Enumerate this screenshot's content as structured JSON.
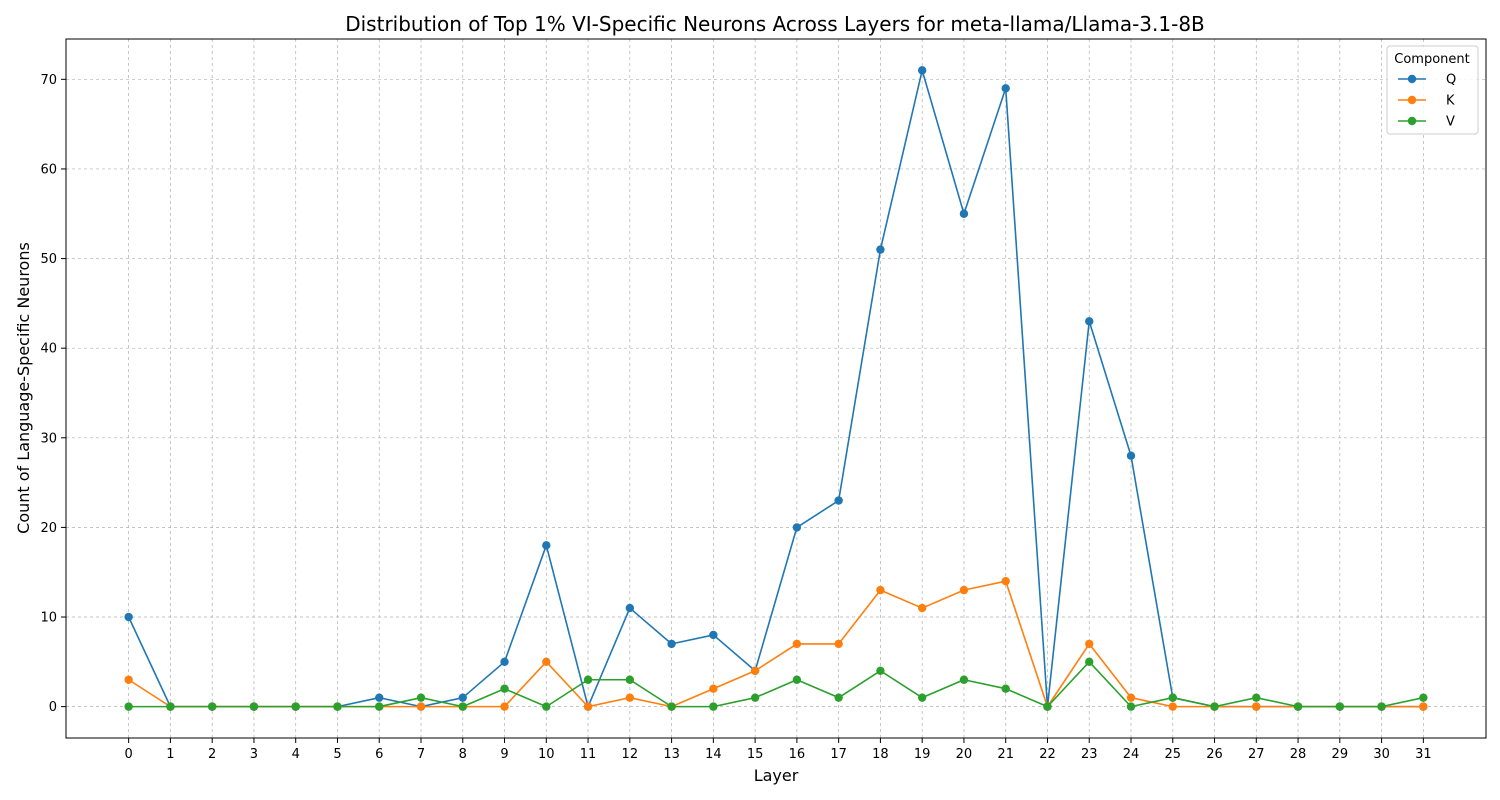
{
  "chart_data": {
    "type": "line",
    "title": "Distribution of Top 1% VI-Specific Neurons Across Layers for meta-llama/Llama-3.1-8B",
    "xlabel": "Layer",
    "ylabel": "Count of Language-Specific Neurons",
    "x": [
      0,
      1,
      2,
      3,
      4,
      5,
      6,
      7,
      8,
      9,
      10,
      11,
      12,
      13,
      14,
      15,
      16,
      17,
      18,
      19,
      20,
      21,
      22,
      23,
      24,
      25,
      26,
      27,
      28,
      29,
      30,
      31
    ],
    "xlim": [
      -1.5,
      32.5
    ],
    "ylim": [
      -3.5,
      74.5
    ],
    "yticks": [
      0,
      10,
      20,
      30,
      40,
      50,
      60,
      70
    ],
    "grid": true,
    "legend": {
      "title": "Component",
      "placement": "top-right"
    },
    "series": [
      {
        "name": "Q",
        "color": "#1f77b4",
        "values": [
          10,
          0,
          0,
          0,
          0,
          0,
          1,
          0,
          1,
          5,
          18,
          0,
          11,
          7,
          8,
          4,
          20,
          23,
          51,
          71,
          55,
          69,
          0,
          43,
          28,
          1,
          0,
          0,
          0,
          0,
          0,
          0
        ]
      },
      {
        "name": "K",
        "color": "#ff7f0e",
        "values": [
          3,
          0,
          0,
          0,
          0,
          0,
          0,
          0,
          0,
          0,
          5,
          0,
          1,
          0,
          2,
          4,
          7,
          7,
          13,
          11,
          13,
          14,
          0,
          7,
          1,
          0,
          0,
          0,
          0,
          0,
          0,
          0
        ]
      },
      {
        "name": "V",
        "color": "#2ca02c",
        "values": [
          0,
          0,
          0,
          0,
          0,
          0,
          0,
          1,
          0,
          2,
          0,
          3,
          3,
          0,
          0,
          1,
          3,
          1,
          4,
          1,
          3,
          2,
          0,
          5,
          0,
          1,
          0,
          1,
          0,
          0,
          0,
          1
        ]
      }
    ]
  }
}
